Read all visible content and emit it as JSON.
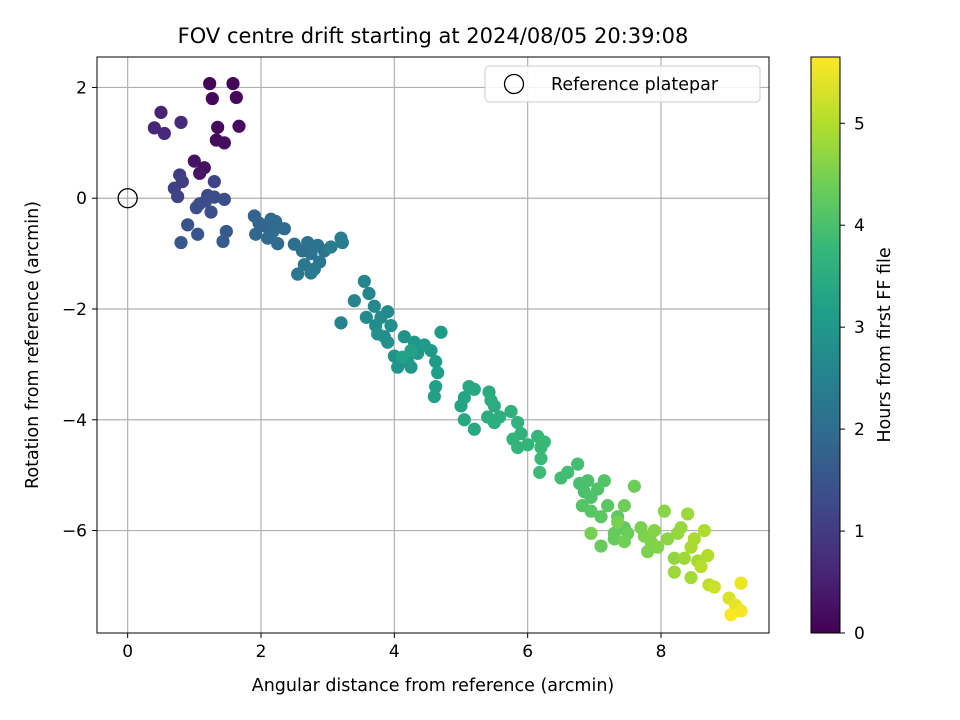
{
  "chart_data": {
    "type": "scatter",
    "title": "FOV centre drift starting at 2024/08/05 20:39:08",
    "xlabel": "Angular distance from reference (arcmin)",
    "ylabel": "Rotation from reference (arcmin)",
    "xlim": [
      -0.46,
      9.62
    ],
    "ylim": [
      -7.85,
      2.55
    ],
    "xticks": [
      0,
      2,
      4,
      6,
      8
    ],
    "yticks": [
      -6,
      -4,
      -2,
      0,
      2
    ],
    "xtick_labels": [
      "0",
      "2",
      "4",
      "6",
      "8"
    ],
    "ytick_labels": [
      "−6",
      "−4",
      "−2",
      "0",
      "2"
    ],
    "grid": true,
    "legend": {
      "position": "top-right",
      "label": "Reference platepar",
      "marker": "open-circle"
    },
    "reference_point": {
      "x": 0,
      "y": 0
    },
    "colorbar": {
      "label": "Hours from first FF file",
      "colormap": "viridis",
      "range": [
        0,
        5.65
      ],
      "ticks": [
        0,
        1,
        2,
        3,
        4,
        5
      ],
      "tick_labels": [
        "0",
        "1",
        "2",
        "3",
        "4",
        "5"
      ],
      "stops": [
        "#440154",
        "#482878",
        "#3e4989",
        "#31688e",
        "#26828e",
        "#1f9e89",
        "#35b779",
        "#6ece58",
        "#b5de2b",
        "#fde725"
      ]
    },
    "series": [
      {
        "points": [
          [
            1.23,
            2.07,
            0.05
          ],
          [
            1.58,
            2.07,
            0.07
          ],
          [
            1.27,
            1.8,
            0.1
          ],
          [
            1.63,
            1.82,
            0.12
          ],
          [
            1.35,
            1.28,
            0.15
          ],
          [
            1.67,
            1.3,
            0.18
          ],
          [
            1.33,
            1.05,
            0.2
          ],
          [
            1.45,
            1.0,
            0.22
          ],
          [
            1.15,
            0.55,
            0.25
          ],
          [
            1.0,
            0.67,
            0.28
          ],
          [
            1.08,
            0.45,
            0.3
          ],
          [
            0.5,
            1.55,
            0.55
          ],
          [
            0.4,
            1.27,
            0.6
          ],
          [
            0.55,
            1.17,
            0.65
          ],
          [
            0.8,
            1.37,
            0.7
          ],
          [
            0.78,
            0.42,
            1.0
          ],
          [
            0.82,
            0.3,
            1.05
          ],
          [
            0.7,
            0.18,
            1.1
          ],
          [
            0.75,
            0.03,
            1.15
          ],
          [
            1.3,
            0.3,
            1.2
          ],
          [
            1.2,
            0.05,
            1.25
          ],
          [
            1.3,
            0.02,
            1.3
          ],
          [
            1.08,
            -0.1,
            1.3
          ],
          [
            1.17,
            -0.05,
            1.32
          ],
          [
            1.45,
            -0.02,
            1.35
          ],
          [
            1.25,
            -0.25,
            1.38
          ],
          [
            1.03,
            -0.17,
            1.4
          ],
          [
            0.9,
            -0.48,
            1.45
          ],
          [
            1.05,
            -0.65,
            1.5
          ],
          [
            0.8,
            -0.8,
            1.55
          ],
          [
            1.48,
            -0.6,
            1.6
          ],
          [
            1.43,
            -0.78,
            1.62
          ],
          [
            1.9,
            -0.32,
            1.8
          ],
          [
            1.97,
            -0.45,
            1.82
          ],
          [
            2.05,
            -0.5,
            1.85
          ],
          [
            1.92,
            -0.65,
            1.88
          ],
          [
            2.15,
            -0.38,
            1.9
          ],
          [
            2.22,
            -0.42,
            1.92
          ],
          [
            2.1,
            -0.72,
            1.95
          ],
          [
            2.25,
            -0.82,
            1.98
          ],
          [
            2.18,
            -0.6,
            2.0
          ],
          [
            2.5,
            -0.83,
            2.05
          ],
          [
            2.7,
            -0.8,
            2.1
          ],
          [
            2.85,
            -0.85,
            2.12
          ],
          [
            2.95,
            -0.95,
            2.15
          ],
          [
            2.75,
            -1.0,
            2.18
          ],
          [
            2.88,
            -1.15,
            2.2
          ],
          [
            2.65,
            -1.2,
            2.25
          ],
          [
            2.55,
            -1.37,
            2.28
          ],
          [
            2.75,
            -1.35,
            2.3
          ],
          [
            2.8,
            -1.28,
            2.32
          ],
          [
            3.05,
            -0.88,
            2.35
          ],
          [
            3.2,
            -0.72,
            2.38
          ],
          [
            3.22,
            -0.8,
            2.4
          ],
          [
            3.2,
            -2.25,
            2.5
          ],
          [
            3.4,
            -1.85,
            2.55
          ],
          [
            3.55,
            -1.5,
            2.6
          ],
          [
            3.62,
            -1.72,
            2.62
          ],
          [
            3.7,
            -1.95,
            2.65
          ],
          [
            3.58,
            -2.15,
            2.68
          ],
          [
            3.8,
            -2.15,
            2.7
          ],
          [
            3.9,
            -2.05,
            2.72
          ],
          [
            3.72,
            -2.3,
            2.75
          ],
          [
            3.85,
            -2.5,
            2.78
          ],
          [
            3.95,
            -2.3,
            2.8
          ],
          [
            3.75,
            -2.45,
            2.82
          ],
          [
            3.9,
            -2.6,
            2.85
          ],
          [
            4.0,
            -2.85,
            2.88
          ],
          [
            4.15,
            -2.5,
            2.9
          ],
          [
            4.05,
            -3.05,
            2.92
          ],
          [
            4.2,
            -2.95,
            2.95
          ],
          [
            4.3,
            -2.6,
            2.98
          ],
          [
            4.35,
            -2.8,
            3.0
          ],
          [
            4.25,
            -3.05,
            3.02
          ],
          [
            4.45,
            -2.65,
            3.05
          ],
          [
            4.55,
            -2.75,
            3.08
          ],
          [
            4.62,
            -2.95,
            3.1
          ],
          [
            4.7,
            -2.42,
            3.12
          ],
          [
            4.65,
            -3.15,
            3.15
          ],
          [
            4.62,
            -3.4,
            3.18
          ],
          [
            4.6,
            -3.58,
            3.2
          ],
          [
            4.12,
            -2.87,
            3.22
          ],
          [
            4.25,
            -2.75,
            3.25
          ],
          [
            5.0,
            -3.75,
            3.3
          ],
          [
            5.05,
            -3.6,
            3.32
          ],
          [
            5.12,
            -3.4,
            3.35
          ],
          [
            5.2,
            -3.45,
            3.38
          ],
          [
            5.05,
            -4.0,
            3.4
          ],
          [
            5.2,
            -4.17,
            3.42
          ],
          [
            5.42,
            -3.5,
            3.45
          ],
          [
            5.45,
            -3.65,
            3.48
          ],
          [
            5.5,
            -3.75,
            3.5
          ],
          [
            5.4,
            -3.95,
            3.52
          ],
          [
            5.5,
            -4.05,
            3.55
          ],
          [
            5.58,
            -3.95,
            3.58
          ],
          [
            5.75,
            -3.85,
            3.6
          ],
          [
            5.85,
            -4.05,
            3.62
          ],
          [
            5.9,
            -4.25,
            3.65
          ],
          [
            5.78,
            -4.35,
            3.68
          ],
          [
            5.85,
            -4.5,
            3.7
          ],
          [
            6.0,
            -4.45,
            3.72
          ],
          [
            6.15,
            -4.3,
            3.75
          ],
          [
            6.2,
            -4.5,
            3.78
          ],
          [
            6.25,
            -4.4,
            3.8
          ],
          [
            6.2,
            -4.7,
            3.82
          ],
          [
            6.18,
            -4.95,
            3.85
          ],
          [
            6.5,
            -5.05,
            3.9
          ],
          [
            6.6,
            -4.95,
            3.92
          ],
          [
            6.75,
            -4.8,
            3.95
          ],
          [
            6.78,
            -5.15,
            3.98
          ],
          [
            6.85,
            -5.3,
            4.0
          ],
          [
            6.9,
            -5.1,
            4.02
          ],
          [
            6.95,
            -5.4,
            4.05
          ],
          [
            7.05,
            -5.25,
            4.08
          ],
          [
            7.15,
            -5.1,
            4.1
          ],
          [
            6.82,
            -5.55,
            4.12
          ],
          [
            6.95,
            -5.65,
            4.15
          ],
          [
            7.1,
            -5.75,
            4.18
          ],
          [
            7.2,
            -5.55,
            4.2
          ],
          [
            7.35,
            -5.75,
            4.22
          ],
          [
            7.45,
            -5.95,
            4.25
          ],
          [
            7.3,
            -6.05,
            4.28
          ],
          [
            7.1,
            -6.28,
            4.3
          ],
          [
            7.3,
            -6.15,
            4.32
          ],
          [
            7.5,
            -6.05,
            4.35
          ],
          [
            7.6,
            -5.2,
            4.38
          ],
          [
            7.45,
            -5.55,
            4.4
          ],
          [
            7.45,
            -6.2,
            4.42
          ],
          [
            6.95,
            -6.05,
            4.45
          ],
          [
            7.35,
            -5.85,
            4.48
          ],
          [
            7.7,
            -5.95,
            4.5
          ],
          [
            7.75,
            -6.1,
            4.52
          ],
          [
            7.85,
            -6.2,
            4.55
          ],
          [
            7.9,
            -6.0,
            4.58
          ],
          [
            7.95,
            -6.3,
            4.6
          ],
          [
            8.05,
            -5.65,
            4.62
          ],
          [
            8.1,
            -6.15,
            4.65
          ],
          [
            8.2,
            -6.5,
            4.7
          ],
          [
            8.25,
            -6.05,
            4.72
          ],
          [
            8.3,
            -5.95,
            4.75
          ],
          [
            8.4,
            -5.7,
            4.78
          ],
          [
            8.2,
            -6.75,
            4.8
          ],
          [
            8.35,
            -6.5,
            4.82
          ],
          [
            8.45,
            -6.85,
            4.85
          ],
          [
            8.55,
            -6.55,
            4.88
          ],
          [
            8.45,
            -6.3,
            4.9
          ],
          [
            8.5,
            -6.15,
            4.92
          ],
          [
            8.65,
            -6.0,
            4.95
          ],
          [
            8.7,
            -6.45,
            5.0
          ],
          [
            8.6,
            -6.65,
            5.05
          ],
          [
            8.72,
            -6.98,
            5.1
          ],
          [
            8.8,
            -7.02,
            5.2
          ],
          [
            9.02,
            -7.22,
            5.35
          ],
          [
            9.12,
            -7.35,
            5.45
          ],
          [
            9.2,
            -6.95,
            5.5
          ],
          [
            9.2,
            -7.45,
            5.55
          ],
          [
            9.05,
            -7.52,
            5.62
          ],
          [
            7.8,
            -6.38,
            4.52
          ],
          [
            2.35,
            -0.55,
            1.95
          ],
          [
            2.62,
            -0.95,
            2.05
          ]
        ]
      }
    ]
  }
}
